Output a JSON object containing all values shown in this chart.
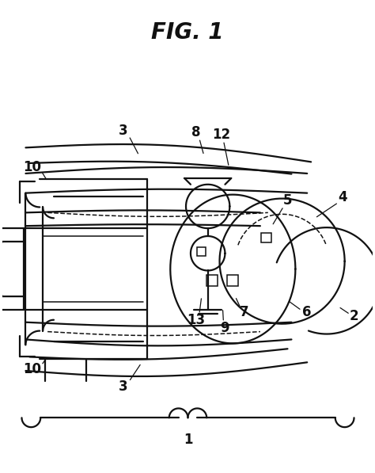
{
  "title": "FIG. 1",
  "bg_color": "#ffffff",
  "line_color": "#111111",
  "title_fontsize": 20,
  "label_fontsize": 12,
  "figsize": [
    4.74,
    5.97
  ],
  "dpi": 100
}
